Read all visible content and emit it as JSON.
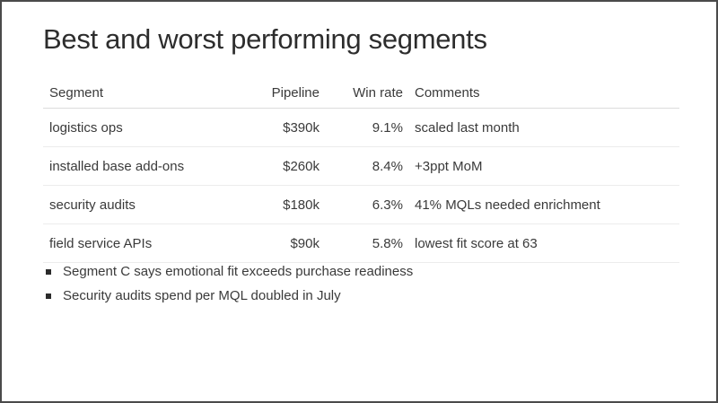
{
  "slide": {
    "title": "Best and worst performing segments",
    "table": {
      "headers": [
        "Segment",
        "Pipeline",
        "Win rate",
        "Comments"
      ],
      "rows": [
        {
          "segment": "logistics ops",
          "pipeline": "$390k",
          "win_rate": "9.1%",
          "comment": "scaled last month"
        },
        {
          "segment": "installed base add-ons",
          "pipeline": "$260k",
          "win_rate": "8.4%",
          "comment": "+3ppt MoM"
        },
        {
          "segment": "security audits",
          "pipeline": "$180k",
          "win_rate": "6.3%",
          "comment": "41% MQLs needed enrichment"
        },
        {
          "segment": "field service APIs",
          "pipeline": "$90k",
          "win_rate": "5.8%",
          "comment": "lowest fit score at 63"
        }
      ]
    },
    "bullets": [
      "Segment C says emotional fit exceeds purchase readiness",
      "Security audits spend per MQL doubled in July"
    ],
    "colors": {
      "background": "#ffffff",
      "frame_border": "#4a4a4a",
      "title_text": "#2d2d2d",
      "body_text": "#3a3a3a",
      "header_divider": "#dcdcdc",
      "row_divider": "#ececec",
      "bullet": "#2b2b2b"
    }
  }
}
